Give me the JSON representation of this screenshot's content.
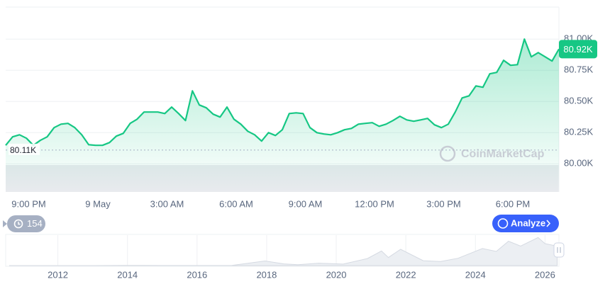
{
  "chart_data": {
    "type": "line",
    "color": "#16c784",
    "x": [
      -1,
      -0.7,
      -0.4,
      -0.1,
      0.2,
      0.5,
      0.8,
      1.1,
      1.4,
      1.7,
      2,
      2.3,
      2.6,
      2.9,
      3.2,
      3.5,
      3.8,
      4.1,
      4.4,
      4.7,
      5,
      5.3,
      5.6,
      5.9,
      6.2,
      6.5,
      6.8,
      7.1,
      7.4,
      7.7,
      8,
      8.3,
      8.6,
      8.9,
      9.2,
      9.5,
      9.8,
      10.1,
      10.4,
      10.7,
      11,
      11.3,
      11.6,
      11.9,
      12.2,
      12.5,
      12.8,
      13.1,
      13.4,
      13.7,
      14,
      14.3,
      14.6,
      14.9,
      15.2,
      15.5,
      15.8,
      16.1,
      16.4,
      16.7,
      17,
      17.3,
      17.6,
      17.9,
      18.2,
      18.5,
      18.8,
      19.1,
      19.4,
      19.7,
      20,
      20.3,
      20.6,
      20.9,
      21.2,
      21.5,
      21.8,
      22.1,
      22.4,
      22.7,
      23
    ],
    "values": [
      80148,
      80216,
      80233,
      80205,
      80148,
      80188,
      80216,
      80290,
      80318,
      80324,
      80290,
      80233,
      80153,
      80148,
      80148,
      80170,
      80222,
      80244,
      80324,
      80358,
      80415,
      80415,
      80415,
      80403,
      80455,
      80403,
      80347,
      80585,
      80472,
      80449,
      80398,
      80375,
      80455,
      80358,
      80318,
      80261,
      80233,
      80182,
      80250,
      80227,
      80273,
      80403,
      80409,
      80403,
      80290,
      80250,
      80239,
      80233,
      80250,
      80273,
      80284,
      80318,
      80324,
      80330,
      80301,
      80318,
      80347,
      80381,
      80352,
      80341,
      80352,
      80364,
      80313,
      80290,
      80318,
      80415,
      80528,
      80545,
      80625,
      80614,
      80722,
      80733,
      80830,
      80790,
      80795,
      81000,
      80858,
      80892,
      80858,
      80824,
      80920
    ],
    "xlim": [
      -1,
      23
    ],
    "ylim": [
      79780,
      81257
    ],
    "xticks": [
      {
        "value": 0,
        "label": "9:00 PM"
      },
      {
        "value": 3,
        "label": "9 May"
      },
      {
        "value": 6,
        "label": "3:00 AM"
      },
      {
        "value": 9,
        "label": "6:00 AM"
      },
      {
        "value": 12,
        "label": "9:00 AM"
      },
      {
        "value": 15,
        "label": "12:00 PM"
      },
      {
        "value": 18,
        "label": "3:00 PM"
      },
      {
        "value": 21,
        "label": "6:00 PM"
      }
    ],
    "yticks": [
      {
        "value": 80000,
        "label": "80.00K"
      },
      {
        "value": 80250,
        "label": "80.25K"
      },
      {
        "value": 80500,
        "label": "80.50K"
      },
      {
        "value": 80750,
        "label": "80.75K"
      },
      {
        "value": 81000,
        "label": "81.00K"
      }
    ],
    "grid": true,
    "reference_line": {
      "value": 80110,
      "label": "80.11K"
    },
    "current_price": {
      "value": 80920,
      "label": "80.92K"
    },
    "watermark": "CoinMarketCap",
    "history_count": 154,
    "analyze_button": "Analyze",
    "navigator": {
      "x": [
        2010.6,
        2012,
        2013,
        2013.9,
        2014.5,
        2015,
        2016,
        2017,
        2017.95,
        2018.5,
        2018.9,
        2019.5,
        2020.2,
        2020.9,
        2021.3,
        2021.5,
        2021.85,
        2022.5,
        2023,
        2023.5,
        2024.2,
        2024.6,
        2024.95,
        2025.3,
        2025.8,
        2026,
        2026.35
      ],
      "values": [
        0,
        5,
        100,
        1000,
        600,
        250,
        400,
        1000,
        19000,
        7000,
        3500,
        10000,
        6000,
        29000,
        60000,
        33000,
        67000,
        20000,
        17000,
        30000,
        70000,
        58000,
        100000,
        80000,
        115000,
        90000,
        80000
      ],
      "xlim": [
        2010.5,
        2026.4
      ],
      "ylim": [
        0,
        125000
      ],
      "xticks": [
        2012,
        2014,
        2016,
        2018,
        2020,
        2022,
        2024,
        2026
      ]
    }
  }
}
